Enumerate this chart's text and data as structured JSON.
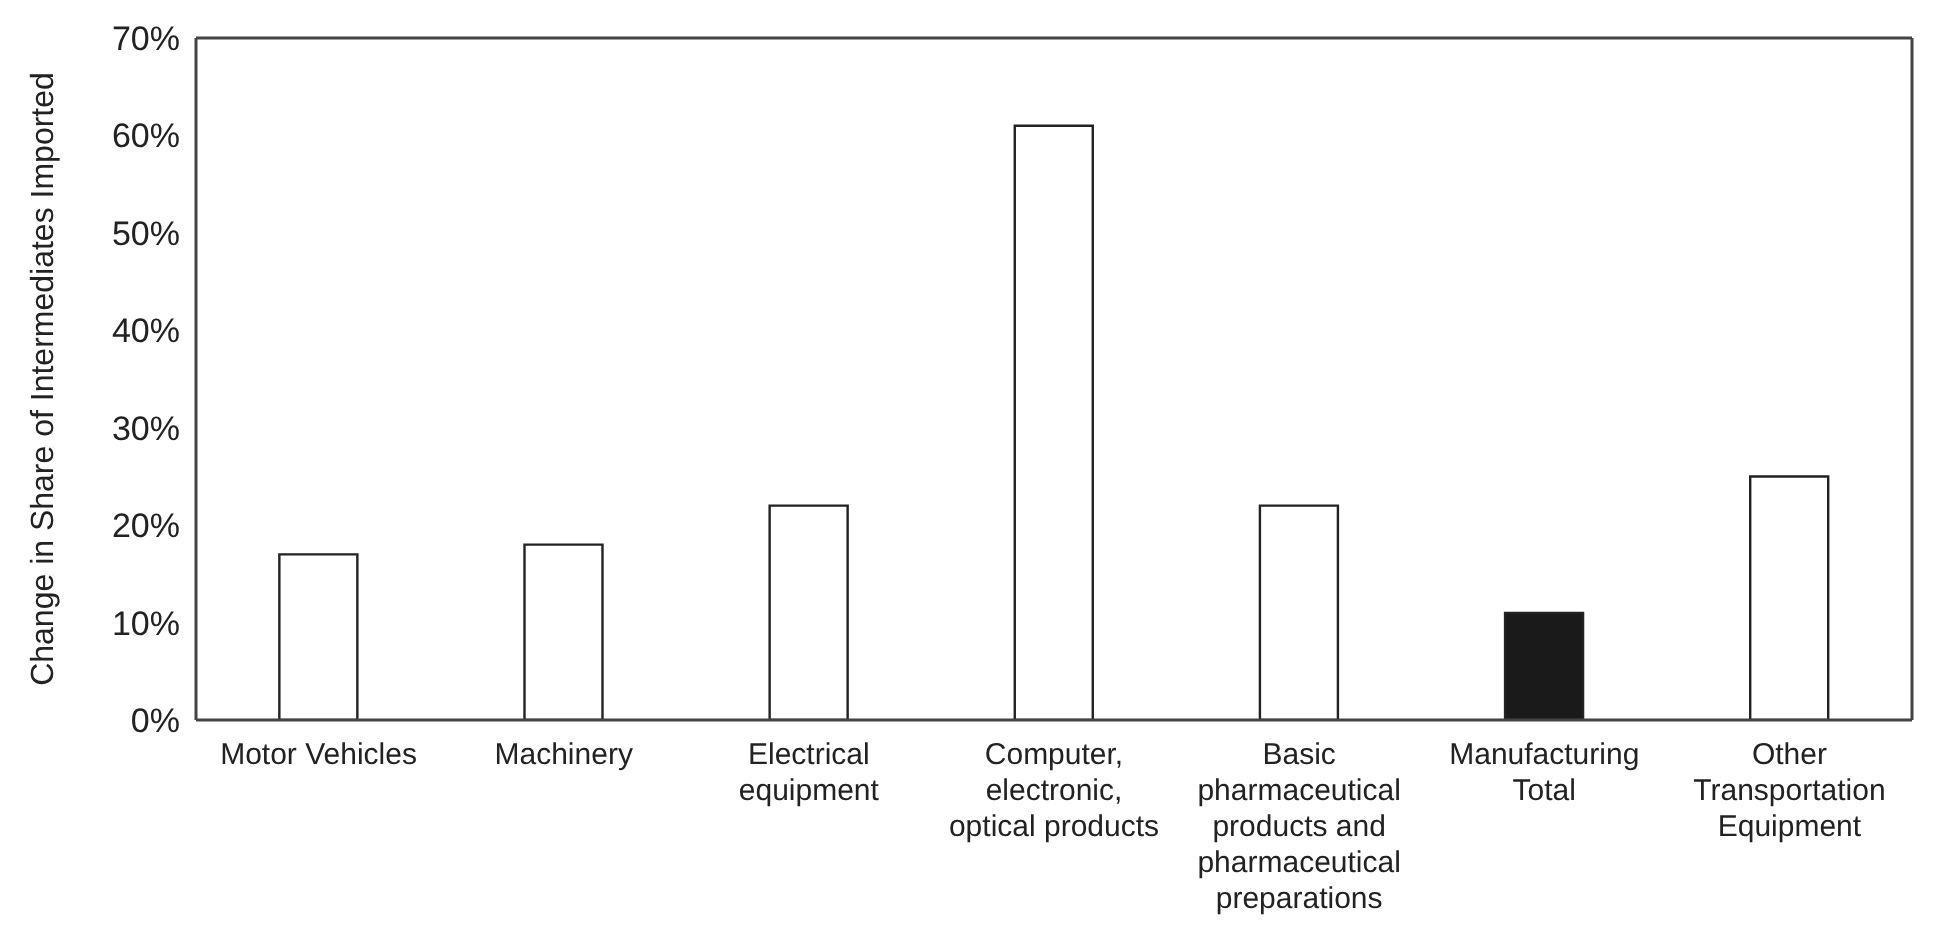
{
  "chart_data": {
    "type": "bar",
    "ylabel": "Change in Share of Intermediates Imported",
    "categories": [
      "Motor Vehicles",
      "Machinery",
      "Electrical equipment",
      "Computer, electronic, optical products",
      "Basic pharmaceutical products and pharmaceutical preparations",
      "Manufacturing Total",
      "Other Transportation Equipment"
    ],
    "values": [
      17,
      18,
      22,
      61,
      22,
      11,
      25
    ],
    "colors": [
      "#ffffff",
      "#ffffff",
      "#ffffff",
      "#ffffff",
      "#ffffff",
      "#1a1a1a",
      "#ffffff"
    ],
    "ylim": [
      0,
      70
    ],
    "yticks": [
      {
        "value": 0,
        "label": "0%"
      },
      {
        "value": 10,
        "label": "10%"
      },
      {
        "value": 20,
        "label": "20%"
      },
      {
        "value": 30,
        "label": "30%"
      },
      {
        "value": 40,
        "label": "40%"
      },
      {
        "value": 50,
        "label": "50%"
      },
      {
        "value": 60,
        "label": "60%"
      },
      {
        "value": 70,
        "label": "70%"
      }
    ],
    "grid": false,
    "legend": false
  }
}
